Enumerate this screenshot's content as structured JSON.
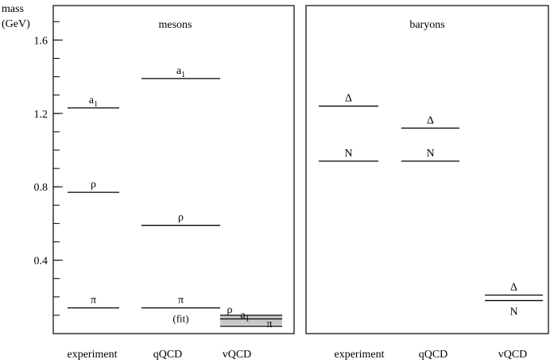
{
  "chart_data": {
    "type": "level-diagram",
    "ylabel_line1": "mass",
    "ylabel_line2": "(GeV)",
    "ylim": [
      0.0,
      1.75
    ],
    "yticks": [
      {
        "value": 0.4,
        "label": "0.4"
      },
      {
        "value": 0.8,
        "label": "0.8"
      },
      {
        "value": 1.2,
        "label": "1.2"
      },
      {
        "value": 1.6,
        "label": "1.6"
      }
    ],
    "minor_step": 0.1,
    "panels": [
      {
        "title": "mesons",
        "columns": [
          "experiment",
          "qQCD",
          "vQCD"
        ],
        "levels": [
          {
            "column": 0,
            "name": "a",
            "sub": "1",
            "mass": 1.23,
            "label_pos": "above"
          },
          {
            "column": 0,
            "name": "ρ",
            "sub": "",
            "mass": 0.77,
            "label_pos": "above"
          },
          {
            "column": 0,
            "name": "π",
            "sub": "",
            "mass": 0.14,
            "label_pos": "above"
          },
          {
            "column": 1,
            "name": "a",
            "sub": "1",
            "mass": 1.39,
            "label_pos": "above"
          },
          {
            "column": 1,
            "name": "ρ",
            "sub": "",
            "mass": 0.59,
            "label_pos": "above"
          },
          {
            "column": 1,
            "name": "π",
            "sub": "",
            "mass": 0.14,
            "label_pos": "above",
            "note": "(fit)"
          },
          {
            "column": 2,
            "name": "ρ",
            "sub": "",
            "mass": 0.1,
            "label_pos": "left"
          },
          {
            "column": 2,
            "name": "a",
            "sub": "1",
            "mass": 0.08,
            "label_pos": "inside"
          },
          {
            "column": 2,
            "name": "π",
            "sub": "",
            "mass": 0.04,
            "label_pos": "inside-right"
          }
        ],
        "band": {
          "column": 2,
          "from": 0.045,
          "to": 0.1,
          "color": "#c8c8c8"
        }
      },
      {
        "title": "baryons",
        "columns": [
          "experiment",
          "qQCD",
          "vQCD"
        ],
        "levels": [
          {
            "column": 0,
            "name": "Δ",
            "sub": "",
            "mass": 1.24,
            "label_pos": "above"
          },
          {
            "column": 0,
            "name": "N",
            "sub": "",
            "mass": 0.94,
            "label_pos": "above"
          },
          {
            "column": 1,
            "name": "Δ",
            "sub": "",
            "mass": 1.12,
            "label_pos": "above"
          },
          {
            "column": 1,
            "name": "N",
            "sub": "",
            "mass": 0.94,
            "label_pos": "above"
          },
          {
            "column": 2,
            "name": "Δ",
            "sub": "",
            "mass": 0.21,
            "label_pos": "above"
          },
          {
            "column": 2,
            "name": "N",
            "sub": "",
            "mass": 0.18,
            "label_pos": "below"
          }
        ]
      }
    ]
  }
}
